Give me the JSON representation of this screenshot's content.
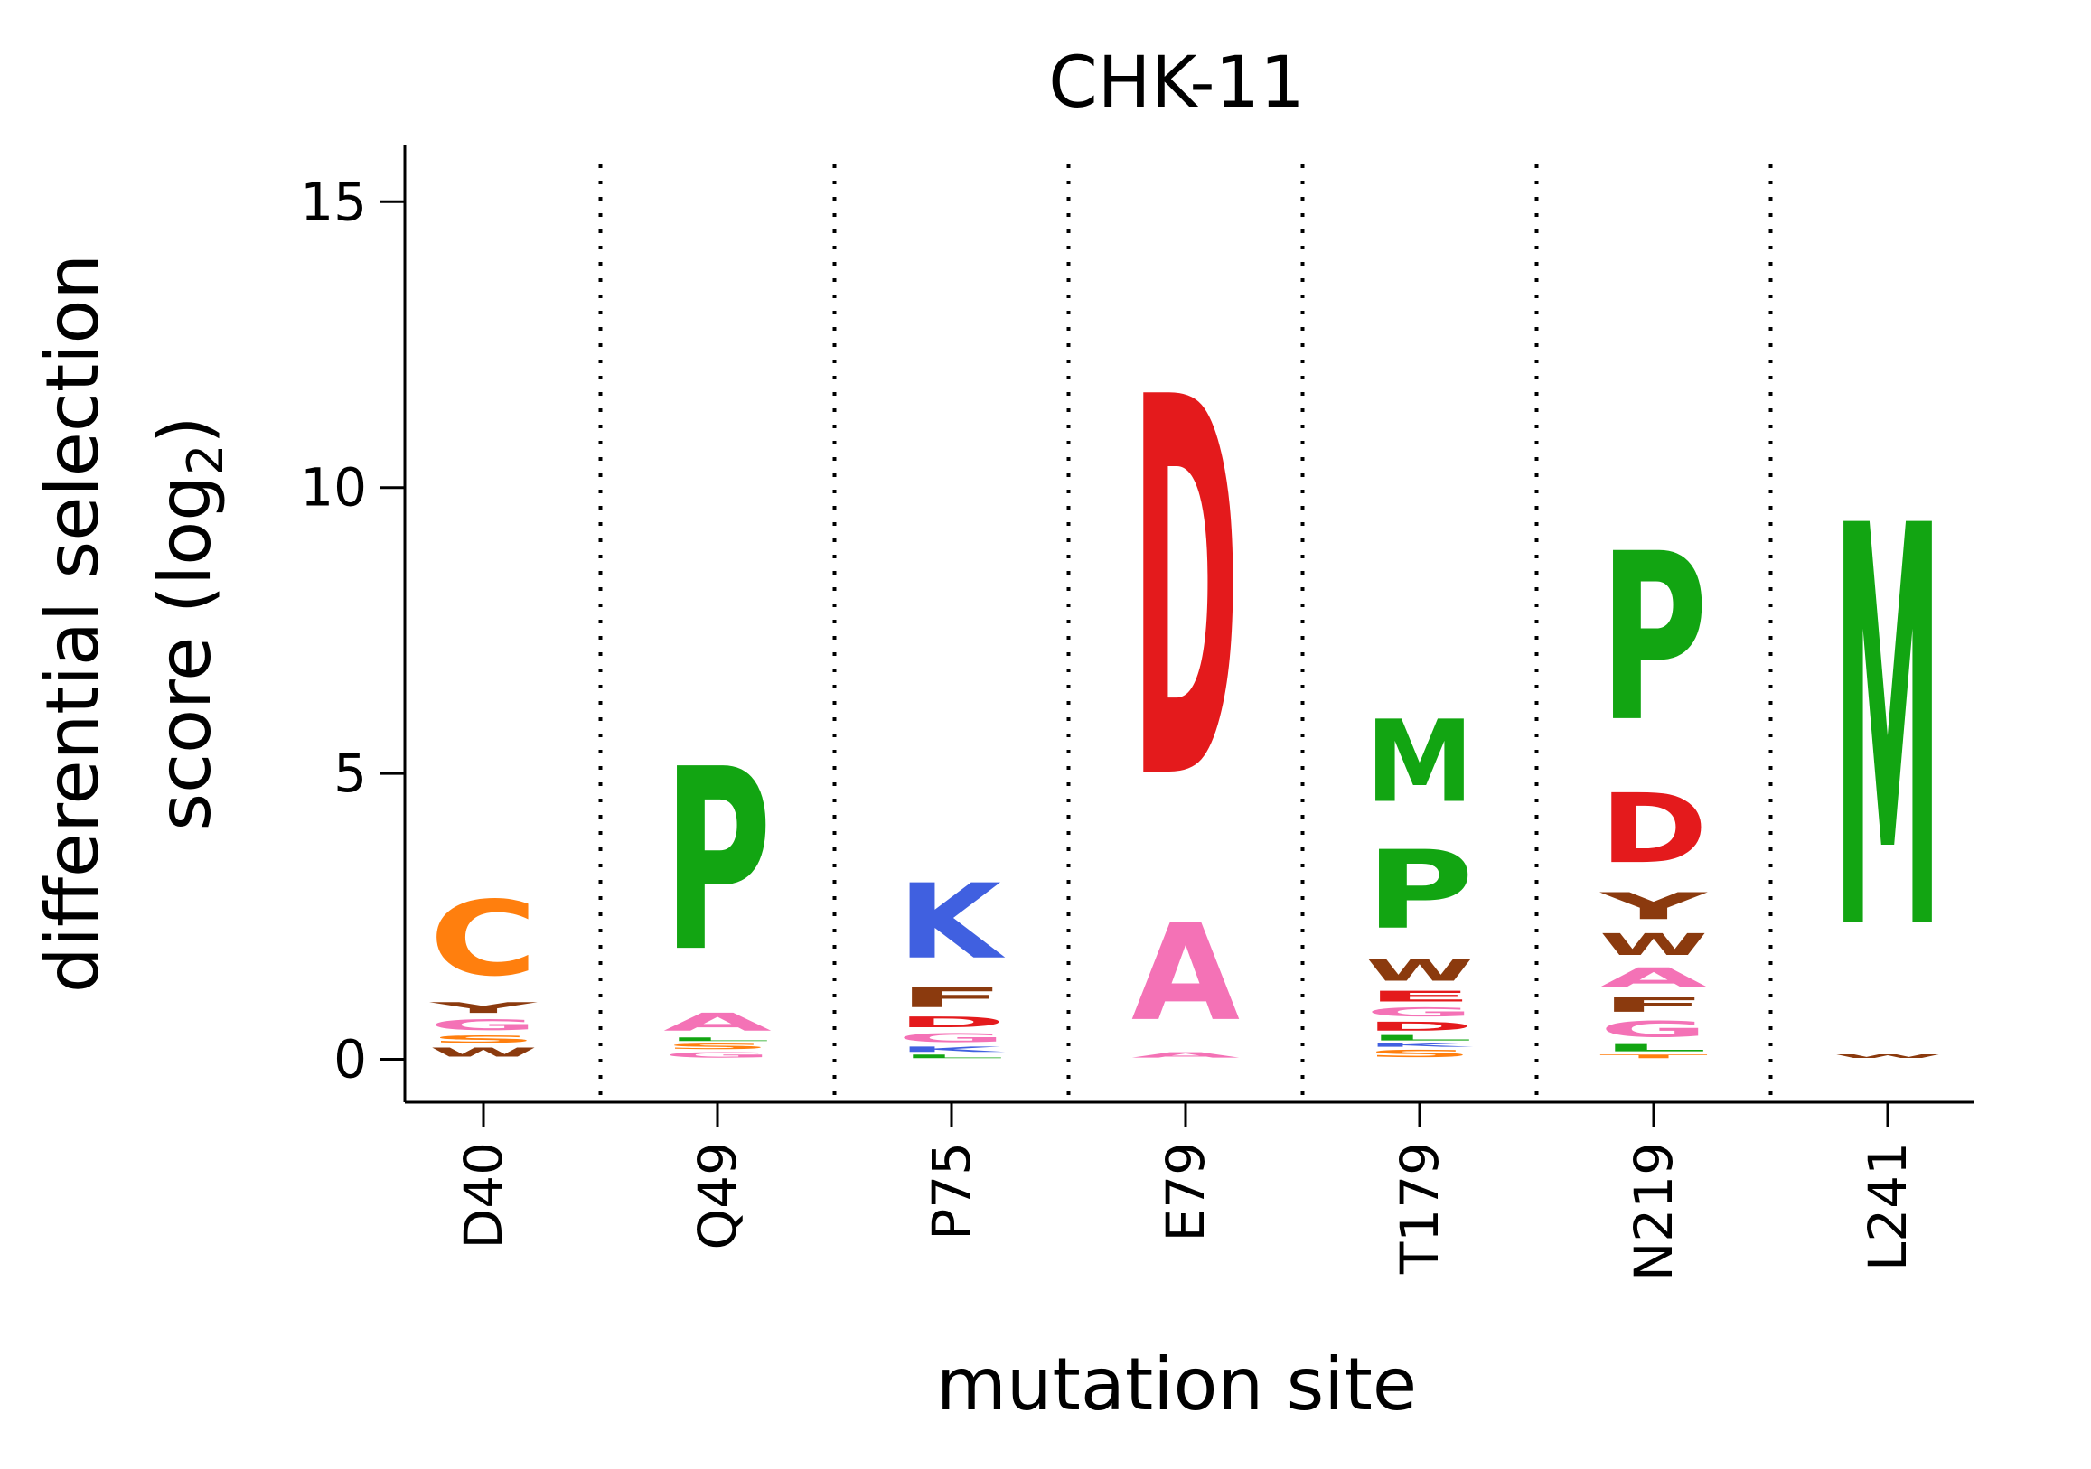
{
  "chart_data": {
    "type": "sequence-logo",
    "title": "CHK-11",
    "xlabel": "mutation site",
    "ylabel_line1": "differential selection",
    "ylabel_line2_prefix": "score (log",
    "ylabel_line2_sub": "2",
    "ylabel_line2_suffix": ")",
    "ylim": [
      -0.75,
      16
    ],
    "yticks": [
      0,
      5,
      10,
      15
    ],
    "ytick_labels": [
      "0",
      "5",
      "10",
      "15"
    ],
    "sites": [
      "D40",
      "Q49",
      "P75",
      "E79",
      "T179",
      "N219",
      "L241"
    ],
    "colors": {
      "C": "#ff7f0e",
      "Y": "#8b3a0e",
      "W": "#8b3a0e",
      "F": "#8b3a0e",
      "G": "#f472b6",
      "A": "#f472b6",
      "S": "#ff7f0e",
      "T": "#ff7f0e",
      "P": "#12a512",
      "M": "#12a512",
      "L": "#12a512",
      "I": "#12a512",
      "V": "#12a512",
      "K": "#4060e0",
      "R": "#4060e0",
      "H": "#4060e0",
      "D": "#e41a1c",
      "E": "#e41a1c",
      "N": "#12a512",
      "Q": "#12a512"
    },
    "stacks": [
      {
        "site": "D40",
        "letters": [
          {
            "letter": "W",
            "height": 0.25
          },
          {
            "letter": "S",
            "height": 0.2
          },
          {
            "letter": "G",
            "height": 0.3
          },
          {
            "letter": "Y",
            "height": 0.3
          },
          {
            "letter": "C",
            "height": 2.1
          }
        ]
      },
      {
        "site": "Q49",
        "letters": [
          {
            "letter": "G",
            "height": 0.15
          },
          {
            "letter": "S",
            "height": 0.15
          },
          {
            "letter": "L",
            "height": 0.1
          },
          {
            "letter": "A",
            "height": 0.5
          },
          {
            "letter": "P",
            "height": 5.1
          }
        ]
      },
      {
        "site": "P75",
        "letters": [
          {
            "letter": "L",
            "height": 0.1
          },
          {
            "letter": "K",
            "height": 0.15
          },
          {
            "letter": "G",
            "height": 0.25
          },
          {
            "letter": "D",
            "height": 0.3
          },
          {
            "letter": "F",
            "height": 0.55
          },
          {
            "letter": "K",
            "height": 2.1
          }
        ]
      },
      {
        "site": "E79",
        "letters": [
          {
            "letter": "A",
            "height": 0.15
          },
          {
            "letter": "A",
            "height": 2.7
          },
          {
            "letter": "D",
            "height": 10.6
          }
        ]
      },
      {
        "site": "T179",
        "letters": [
          {
            "letter": "S",
            "height": 0.2
          },
          {
            "letter": "K",
            "height": 0.1
          },
          {
            "letter": "L",
            "height": 0.15
          },
          {
            "letter": "D",
            "height": 0.25
          },
          {
            "letter": "G",
            "height": 0.25
          },
          {
            "letter": "E",
            "height": 0.3
          },
          {
            "letter": "W",
            "height": 0.6
          },
          {
            "letter": "P",
            "height": 2.2
          },
          {
            "letter": "M",
            "height": 2.3
          }
        ]
      },
      {
        "site": "N219",
        "letters": [
          {
            "letter": "T",
            "height": 0.1
          },
          {
            "letter": "L",
            "height": 0.2
          },
          {
            "letter": "G",
            "height": 0.45
          },
          {
            "letter": "F",
            "height": 0.4
          },
          {
            "letter": "A",
            "height": 0.55
          },
          {
            "letter": "W",
            "height": 0.6
          },
          {
            "letter": "Y",
            "height": 0.75
          },
          {
            "letter": "D",
            "height": 1.95
          },
          {
            "letter": "P",
            "height": 4.7
          }
        ]
      },
      {
        "site": "L241",
        "letters": [
          {
            "letter": "W",
            "height": 0.1
          },
          {
            "letter": "M",
            "height": 11.2
          }
        ]
      }
    ],
    "grid": false,
    "separators": "dotted vertical lines between sites"
  }
}
